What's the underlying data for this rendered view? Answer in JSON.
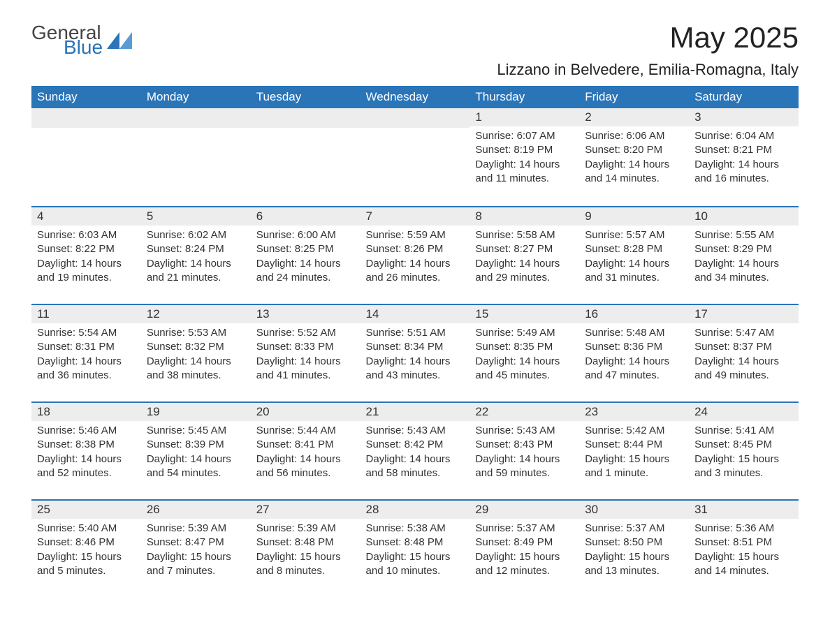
{
  "brand": {
    "text1": "General",
    "text2": "Blue",
    "triangle_color": "#2a74b8"
  },
  "title": "May 2025",
  "subtitle": "Lizzano in Belvedere, Emilia-Romagna, Italy",
  "colors": {
    "header_bg": "#2a74b8",
    "header_text": "#ffffff",
    "daynum_bg": "#ededed",
    "row_border": "#2a74b8",
    "body_text": "#333333",
    "background": "#ffffff"
  },
  "weekdays": [
    "Sunday",
    "Monday",
    "Tuesday",
    "Wednesday",
    "Thursday",
    "Friday",
    "Saturday"
  ],
  "weeks": [
    [
      null,
      null,
      null,
      null,
      {
        "n": "1",
        "sunrise": "6:07 AM",
        "sunset": "8:19 PM",
        "daylight": "14 hours and 11 minutes."
      },
      {
        "n": "2",
        "sunrise": "6:06 AM",
        "sunset": "8:20 PM",
        "daylight": "14 hours and 14 minutes."
      },
      {
        "n": "3",
        "sunrise": "6:04 AM",
        "sunset": "8:21 PM",
        "daylight": "14 hours and 16 minutes."
      }
    ],
    [
      {
        "n": "4",
        "sunrise": "6:03 AM",
        "sunset": "8:22 PM",
        "daylight": "14 hours and 19 minutes."
      },
      {
        "n": "5",
        "sunrise": "6:02 AM",
        "sunset": "8:24 PM",
        "daylight": "14 hours and 21 minutes."
      },
      {
        "n": "6",
        "sunrise": "6:00 AM",
        "sunset": "8:25 PM",
        "daylight": "14 hours and 24 minutes."
      },
      {
        "n": "7",
        "sunrise": "5:59 AM",
        "sunset": "8:26 PM",
        "daylight": "14 hours and 26 minutes."
      },
      {
        "n": "8",
        "sunrise": "5:58 AM",
        "sunset": "8:27 PM",
        "daylight": "14 hours and 29 minutes."
      },
      {
        "n": "9",
        "sunrise": "5:57 AM",
        "sunset": "8:28 PM",
        "daylight": "14 hours and 31 minutes."
      },
      {
        "n": "10",
        "sunrise": "5:55 AM",
        "sunset": "8:29 PM",
        "daylight": "14 hours and 34 minutes."
      }
    ],
    [
      {
        "n": "11",
        "sunrise": "5:54 AM",
        "sunset": "8:31 PM",
        "daylight": "14 hours and 36 minutes."
      },
      {
        "n": "12",
        "sunrise": "5:53 AM",
        "sunset": "8:32 PM",
        "daylight": "14 hours and 38 minutes."
      },
      {
        "n": "13",
        "sunrise": "5:52 AM",
        "sunset": "8:33 PM",
        "daylight": "14 hours and 41 minutes."
      },
      {
        "n": "14",
        "sunrise": "5:51 AM",
        "sunset": "8:34 PM",
        "daylight": "14 hours and 43 minutes."
      },
      {
        "n": "15",
        "sunrise": "5:49 AM",
        "sunset": "8:35 PM",
        "daylight": "14 hours and 45 minutes."
      },
      {
        "n": "16",
        "sunrise": "5:48 AM",
        "sunset": "8:36 PM",
        "daylight": "14 hours and 47 minutes."
      },
      {
        "n": "17",
        "sunrise": "5:47 AM",
        "sunset": "8:37 PM",
        "daylight": "14 hours and 49 minutes."
      }
    ],
    [
      {
        "n": "18",
        "sunrise": "5:46 AM",
        "sunset": "8:38 PM",
        "daylight": "14 hours and 52 minutes."
      },
      {
        "n": "19",
        "sunrise": "5:45 AM",
        "sunset": "8:39 PM",
        "daylight": "14 hours and 54 minutes."
      },
      {
        "n": "20",
        "sunrise": "5:44 AM",
        "sunset": "8:41 PM",
        "daylight": "14 hours and 56 minutes."
      },
      {
        "n": "21",
        "sunrise": "5:43 AM",
        "sunset": "8:42 PM",
        "daylight": "14 hours and 58 minutes."
      },
      {
        "n": "22",
        "sunrise": "5:43 AM",
        "sunset": "8:43 PM",
        "daylight": "14 hours and 59 minutes."
      },
      {
        "n": "23",
        "sunrise": "5:42 AM",
        "sunset": "8:44 PM",
        "daylight": "15 hours and 1 minute."
      },
      {
        "n": "24",
        "sunrise": "5:41 AM",
        "sunset": "8:45 PM",
        "daylight": "15 hours and 3 minutes."
      }
    ],
    [
      {
        "n": "25",
        "sunrise": "5:40 AM",
        "sunset": "8:46 PM",
        "daylight": "15 hours and 5 minutes."
      },
      {
        "n": "26",
        "sunrise": "5:39 AM",
        "sunset": "8:47 PM",
        "daylight": "15 hours and 7 minutes."
      },
      {
        "n": "27",
        "sunrise": "5:39 AM",
        "sunset": "8:48 PM",
        "daylight": "15 hours and 8 minutes."
      },
      {
        "n": "28",
        "sunrise": "5:38 AM",
        "sunset": "8:48 PM",
        "daylight": "15 hours and 10 minutes."
      },
      {
        "n": "29",
        "sunrise": "5:37 AM",
        "sunset": "8:49 PM",
        "daylight": "15 hours and 12 minutes."
      },
      {
        "n": "30",
        "sunrise": "5:37 AM",
        "sunset": "8:50 PM",
        "daylight": "15 hours and 13 minutes."
      },
      {
        "n": "31",
        "sunrise": "5:36 AM",
        "sunset": "8:51 PM",
        "daylight": "15 hours and 14 minutes."
      }
    ]
  ],
  "labels": {
    "sunrise": "Sunrise:",
    "sunset": "Sunset:",
    "daylight": "Daylight:"
  }
}
